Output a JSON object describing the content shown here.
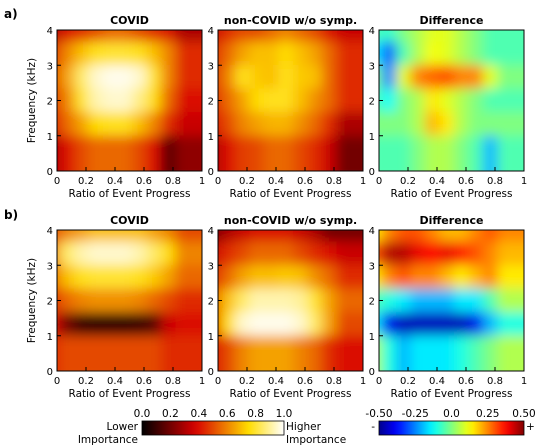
{
  "chart_data": [
    {
      "type": "heatmap",
      "row": "a)",
      "title": "COVID",
      "xlabel": "Ratio of Event Progress",
      "ylabel": "Frequency (kHz)",
      "xlim": [
        0,
        1
      ],
      "ylim": [
        0,
        4
      ],
      "xticks": [
        "0",
        "0.2",
        "0.4",
        "0.6",
        "0.8",
        "1"
      ],
      "yticks": [
        "0",
        "1",
        "2",
        "3",
        "4"
      ],
      "colormap": "hot",
      "vmin": 0.0,
      "vmax": 1.0,
      "grid": [
        [
          0.3,
          0.4,
          0.45,
          0.5,
          0.55,
          0.55,
          0.5,
          0.45,
          0.4,
          0.3
        ],
        [
          0.45,
          0.6,
          0.7,
          0.78,
          0.8,
          0.8,
          0.78,
          0.7,
          0.6,
          0.45
        ],
        [
          0.5,
          0.65,
          0.85,
          0.95,
          0.98,
          0.98,
          0.95,
          0.8,
          0.6,
          0.45
        ],
        [
          0.45,
          0.6,
          0.8,
          0.92,
          0.95,
          0.95,
          0.88,
          0.75,
          0.55,
          0.4
        ],
        [
          0.4,
          0.55,
          0.65,
          0.75,
          0.78,
          0.78,
          0.7,
          0.6,
          0.45,
          0.35
        ],
        [
          0.3,
          0.4,
          0.5,
          0.55,
          0.55,
          0.55,
          0.5,
          0.4,
          0.15,
          0.25
        ]
      ]
    },
    {
      "type": "heatmap",
      "row": "a)",
      "title": "non-COVID w/o symp.",
      "xlabel": "Ratio of Event Progress",
      "ylabel": "",
      "xlim": [
        0,
        1
      ],
      "ylim": [
        0,
        4
      ],
      "xticks": [
        "0",
        "0.2",
        "0.4",
        "0.6",
        "0.8",
        "1"
      ],
      "yticks": [
        "0",
        "1",
        "2",
        "3",
        "4"
      ],
      "colormap": "hot",
      "vmin": 0.0,
      "vmax": 1.0,
      "grid": [
        [
          0.35,
          0.45,
          0.5,
          0.5,
          0.55,
          0.6,
          0.55,
          0.5,
          0.4,
          0.35
        ],
        [
          0.45,
          0.55,
          0.65,
          0.7,
          0.7,
          0.75,
          0.7,
          0.65,
          0.55,
          0.45
        ],
        [
          0.45,
          0.6,
          0.78,
          0.72,
          0.7,
          0.78,
          0.72,
          0.7,
          0.55,
          0.45
        ],
        [
          0.45,
          0.55,
          0.65,
          0.75,
          0.78,
          0.78,
          0.7,
          0.62,
          0.55,
          0.45
        ],
        [
          0.4,
          0.5,
          0.6,
          0.65,
          0.68,
          0.68,
          0.62,
          0.55,
          0.45,
          0.3
        ],
        [
          0.3,
          0.4,
          0.48,
          0.5,
          0.55,
          0.55,
          0.5,
          0.45,
          0.35,
          0.2
        ]
      ]
    },
    {
      "type": "heatmap",
      "row": "a)",
      "title": "Difference",
      "xlabel": "Ratio of Event Progress",
      "ylabel": "",
      "xlim": [
        0,
        1
      ],
      "ylim": [
        0,
        4
      ],
      "xticks": [
        "0",
        "0.2",
        "0.4",
        "0.6",
        "0.8",
        "1"
      ],
      "yticks": [
        "0",
        "1",
        "2",
        "3",
        "4"
      ],
      "colormap": "jet",
      "vmin": -0.5,
      "vmax": 0.5,
      "grid": [
        [
          -0.05,
          -0.08,
          0.0,
          0.05,
          0.1,
          0.1,
          0.05,
          0.0,
          -0.05,
          -0.05
        ],
        [
          -0.15,
          -0.3,
          -0.05,
          0.05,
          0.12,
          0.1,
          0.05,
          0.0,
          -0.05,
          -0.05
        ],
        [
          0.0,
          -0.25,
          0.1,
          0.25,
          0.28,
          0.3,
          0.25,
          0.25,
          0.1,
          0.0
        ],
        [
          -0.05,
          -0.12,
          0.0,
          0.05,
          0.15,
          0.1,
          0.05,
          0.0,
          -0.05,
          -0.05
        ],
        [
          0.0,
          0.0,
          0.0,
          0.05,
          0.2,
          0.15,
          0.05,
          0.0,
          0.0,
          0.0
        ],
        [
          -0.05,
          -0.05,
          -0.05,
          0.0,
          0.05,
          0.05,
          0.0,
          -0.05,
          -0.2,
          -0.05
        ]
      ]
    },
    {
      "type": "heatmap",
      "row": "b)",
      "title": "COVID",
      "xlabel": "Ratio of Event Progress",
      "ylabel": "Frequency (kHz)",
      "xlim": [
        0,
        1
      ],
      "ylim": [
        0,
        4
      ],
      "xticks": [
        "0",
        "0.2",
        "0.4",
        "0.6",
        "0.8",
        "1"
      ],
      "yticks": [
        "0",
        "1",
        "2",
        "3",
        "4"
      ],
      "colormap": "hot",
      "vmin": 0.0,
      "vmax": 1.0,
      "grid": [
        [
          0.5,
          0.6,
          0.65,
          0.7,
          0.7,
          0.7,
          0.7,
          0.65,
          0.6,
          0.5
        ],
        [
          0.6,
          0.85,
          0.92,
          0.95,
          0.95,
          0.95,
          0.92,
          0.85,
          0.75,
          0.6
        ],
        [
          0.55,
          0.7,
          0.78,
          0.8,
          0.8,
          0.8,
          0.78,
          0.72,
          0.65,
          0.55
        ],
        [
          0.45,
          0.55,
          0.6,
          0.62,
          0.62,
          0.62,
          0.6,
          0.55,
          0.5,
          0.45
        ],
        [
          0.4,
          0.2,
          0.1,
          0.08,
          0.08,
          0.08,
          0.1,
          0.15,
          0.35,
          0.4
        ],
        [
          0.45,
          0.5,
          0.5,
          0.5,
          0.5,
          0.5,
          0.5,
          0.5,
          0.45,
          0.45
        ]
      ]
    },
    {
      "type": "heatmap",
      "row": "b)",
      "title": "non-COVID w/o symp.",
      "xlabel": "Ratio of Event Progress",
      "ylabel": "",
      "xlim": [
        0,
        1
      ],
      "ylim": [
        0,
        4
      ],
      "xticks": [
        "0",
        "0.2",
        "0.4",
        "0.6",
        "0.8",
        "1"
      ],
      "yticks": [
        "0",
        "1",
        "2",
        "3",
        "4"
      ],
      "colormap": "hot",
      "vmin": 0.0,
      "vmax": 1.0,
      "grid": [
        [
          0.2,
          0.3,
          0.35,
          0.4,
          0.4,
          0.4,
          0.35,
          0.3,
          0.2,
          0.2
        ],
        [
          0.35,
          0.45,
          0.5,
          0.55,
          0.55,
          0.55,
          0.5,
          0.45,
          0.4,
          0.35
        ],
        [
          0.45,
          0.55,
          0.65,
          0.7,
          0.7,
          0.72,
          0.7,
          0.62,
          0.55,
          0.45
        ],
        [
          0.55,
          0.7,
          0.85,
          0.92,
          0.92,
          0.92,
          0.9,
          0.8,
          0.65,
          0.55
        ],
        [
          0.5,
          0.75,
          0.95,
          0.98,
          0.98,
          0.98,
          0.95,
          0.85,
          0.65,
          0.5
        ],
        [
          0.4,
          0.5,
          0.6,
          0.65,
          0.65,
          0.65,
          0.6,
          0.55,
          0.45,
          0.4
        ]
      ]
    },
    {
      "type": "heatmap",
      "row": "b)",
      "title": "Difference",
      "xlabel": "Ratio of Event Progress",
      "ylabel": "",
      "xlim": [
        0,
        1
      ],
      "ylim": [
        0,
        4
      ],
      "xticks": [
        "0",
        "0.2",
        "0.4",
        "0.6",
        "0.8",
        "1"
      ],
      "yticks": [
        "0",
        "1",
        "2",
        "3",
        "4"
      ],
      "colormap": "jet",
      "vmin": -0.5,
      "vmax": 0.5,
      "grid": [
        [
          0.15,
          0.25,
          0.3,
          0.3,
          0.25,
          0.2,
          0.2,
          0.25,
          0.3,
          0.25
        ],
        [
          0.3,
          0.45,
          0.45,
          0.4,
          0.38,
          0.4,
          0.35,
          0.3,
          0.25,
          0.2
        ],
        [
          0.15,
          0.25,
          0.3,
          0.25,
          0.25,
          0.2,
          0.15,
          0.2,
          0.25,
          0.15
        ],
        [
          -0.05,
          -0.1,
          -0.15,
          -0.2,
          -0.2,
          -0.2,
          -0.15,
          -0.15,
          -0.05,
          0.05
        ],
        [
          -0.15,
          -0.4,
          -0.45,
          -0.45,
          -0.45,
          -0.45,
          -0.45,
          -0.4,
          -0.2,
          -0.1
        ],
        [
          0.05,
          -0.1,
          -0.2,
          -0.15,
          -0.15,
          -0.15,
          -0.1,
          -0.05,
          0.0,
          0.05
        ]
      ]
    }
  ],
  "colorbars": [
    {
      "colormap": "hot",
      "min": 0.0,
      "max": 1.0,
      "tick_labels": [
        "0.0",
        "0.2",
        "0.4",
        "0.6",
        "0.8",
        "1.0"
      ],
      "low_label": [
        "Lower",
        "Importance"
      ],
      "high_label": [
        "Higher",
        "Importance"
      ]
    },
    {
      "colormap": "jet",
      "min": -0.5,
      "max": 0.5,
      "tick_labels": [
        "-0.50",
        "-0.25",
        "0.0",
        "0.25",
        "0.50"
      ],
      "low_label": [
        "-"
      ],
      "high_label": [
        "+"
      ]
    }
  ]
}
